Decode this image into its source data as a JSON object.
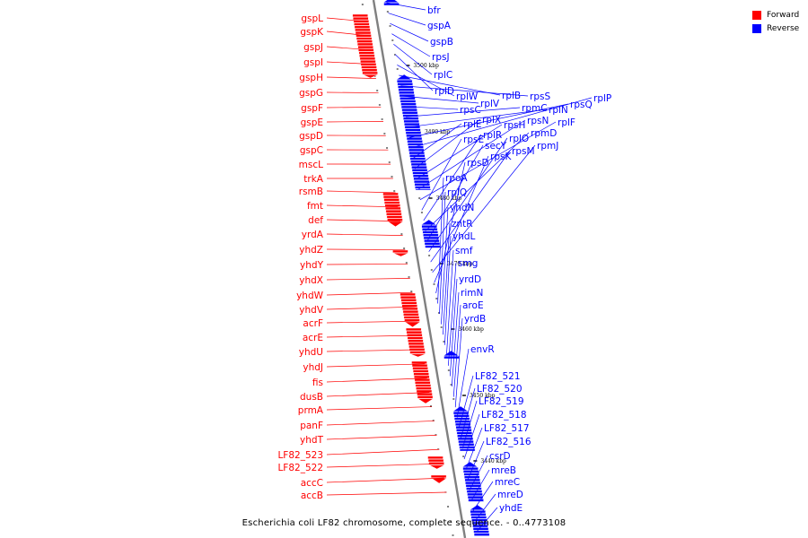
{
  "legend": {
    "items": [
      {
        "label": "Forward",
        "color": "#ff0000"
      },
      {
        "label": "Reverse",
        "color": "#0000ff"
      }
    ]
  },
  "caption": "Escherichia coli LF82 chromosome, complete sequence. - 0..4773108",
  "colors": {
    "forward": "#ff0000",
    "reverse": "#0000ff",
    "backbone": "#808080"
  },
  "ruler_ticks": [
    "3500 kbp",
    "3490 kbp",
    "3480 kbp",
    "3470 kbp",
    "3460 kbp",
    "3450 kbp",
    "3440 kbp"
  ],
  "forward_genes": [
    "gspL",
    "gspK",
    "gspJ",
    "gspI",
    "gspH",
    "gspG",
    "gspF",
    "gspE",
    "gspD",
    "gspC",
    "mscL",
    "trkA",
    "rsmB",
    "fmt",
    "def",
    "yrdA",
    "yhdZ",
    "yhdY",
    "yhdX",
    "yhdW",
    "yhdV",
    "acrF",
    "acrE",
    "yhdU",
    "yhdJ",
    "fis",
    "dusB",
    "prmA",
    "panF",
    "yhdT",
    "LF82_523",
    "LF82_522",
    "accC",
    "accB"
  ],
  "reverse_genes": [
    "bfr",
    "gspA",
    "gspB",
    "rpsJ",
    "rplC",
    "rplD",
    "rplW",
    "rplB",
    "rpsS",
    "rplV",
    "rpsC",
    "rpmC",
    "rplN",
    "rpsQ",
    "rplP",
    "rplE",
    "rplX",
    "rpsH",
    "rpsN",
    "rplF",
    "rpsE",
    "rplR",
    "rpmD",
    "secY",
    "rplO",
    "rpsM",
    "rpmJ",
    "rpsK",
    "rpsD",
    "rpoA",
    "rplQ",
    "yhdN",
    "zntR",
    "yhdL",
    "smf",
    "smg",
    "yrdD",
    "rimN",
    "aroE",
    "yrdB",
    "envR",
    "LF82_521",
    "LF82_520",
    "LF82_519",
    "LF82_518",
    "LF82_517",
    "LF82_516",
    "csrD",
    "mreB",
    "mreC",
    "mreD",
    "yhdE"
  ]
}
